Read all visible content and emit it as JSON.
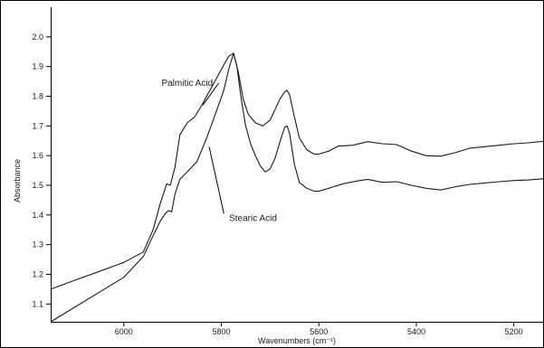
{
  "chart_data": {
    "type": "line",
    "title": "",
    "xlabel": "Wavenumbers (cm⁻¹)",
    "ylabel": "Absorbance",
    "xlim": [
      6150,
      5140
    ],
    "ylim": [
      1.04,
      2.1
    ],
    "x_reversed": true,
    "grid": false,
    "legend": "none",
    "xticks": [
      6000,
      5800,
      5600,
      5400,
      5200
    ],
    "xtick_labels": [
      "6000",
      "5800",
      "5600",
      "5400",
      "5200"
    ],
    "yticks": [
      1.1,
      1.2,
      1.3,
      1.4,
      1.5,
      1.6,
      1.7,
      1.8,
      1.9,
      2.0
    ],
    "ytick_labels": [
      "1.1",
      "1.2",
      "1.3",
      "1.4",
      "1.5",
      "1.6",
      "1.7",
      "1.8",
      "1.9",
      "2.0"
    ],
    "line_color": "#1a1a1a",
    "series": [
      {
        "name": "Palmitic Acid",
        "x": [
          6150,
          6100,
          6050,
          6000,
          5960,
          5940,
          5925,
          5912,
          5905,
          5895,
          5885,
          5870,
          5855,
          5840,
          5820,
          5800,
          5785,
          5775,
          5765,
          5755,
          5745,
          5730,
          5715,
          5700,
          5690,
          5680,
          5670,
          5665,
          5660,
          5650,
          5640,
          5625,
          5610,
          5600,
          5580,
          5560,
          5530,
          5500,
          5470,
          5440,
          5410,
          5380,
          5350,
          5320,
          5290,
          5260,
          5230,
          5200,
          5170,
          5140
        ],
        "y": [
          1.15,
          1.18,
          1.21,
          1.24,
          1.275,
          1.35,
          1.44,
          1.505,
          1.5,
          1.56,
          1.67,
          1.71,
          1.73,
          1.77,
          1.83,
          1.89,
          1.935,
          1.945,
          1.88,
          1.79,
          1.74,
          1.71,
          1.7,
          1.72,
          1.755,
          1.79,
          1.815,
          1.82,
          1.805,
          1.73,
          1.66,
          1.62,
          1.605,
          1.605,
          1.615,
          1.632,
          1.635,
          1.647,
          1.64,
          1.637,
          1.615,
          1.6,
          1.598,
          1.61,
          1.625,
          1.63,
          1.635,
          1.64,
          1.643,
          1.648
        ]
      },
      {
        "name": "Stearic Acid",
        "x": [
          6150,
          6100,
          6050,
          6000,
          5960,
          5940,
          5925,
          5915,
          5908,
          5902,
          5895,
          5885,
          5870,
          5850,
          5830,
          5810,
          5795,
          5785,
          5775,
          5768,
          5760,
          5750,
          5740,
          5730,
          5720,
          5710,
          5700,
          5690,
          5680,
          5670,
          5665,
          5660,
          5650,
          5640,
          5625,
          5610,
          5600,
          5585,
          5570,
          5550,
          5520,
          5500,
          5470,
          5440,
          5410,
          5380,
          5350,
          5320,
          5290,
          5260,
          5230,
          5200,
          5170,
          5140
        ],
        "y": [
          1.04,
          1.09,
          1.14,
          1.19,
          1.26,
          1.33,
          1.38,
          1.405,
          1.415,
          1.41,
          1.47,
          1.52,
          1.545,
          1.58,
          1.66,
          1.75,
          1.82,
          1.89,
          1.945,
          1.9,
          1.8,
          1.7,
          1.64,
          1.6,
          1.565,
          1.545,
          1.555,
          1.59,
          1.645,
          1.695,
          1.7,
          1.675,
          1.57,
          1.51,
          1.49,
          1.48,
          1.48,
          1.487,
          1.495,
          1.505,
          1.515,
          1.52,
          1.51,
          1.512,
          1.5,
          1.49,
          1.484,
          1.495,
          1.503,
          1.508,
          1.512,
          1.516,
          1.518,
          1.522
        ]
      }
    ],
    "annotations": [
      {
        "text": "Palmitic Acid",
        "x": 5870,
        "y": 1.835,
        "target_x": 5838,
        "target_y": 1.77
      },
      {
        "text": "Stearic Acid",
        "x": 5735,
        "y": 1.38,
        "target_x": 5825,
        "target_y": 1.63
      }
    ]
  }
}
